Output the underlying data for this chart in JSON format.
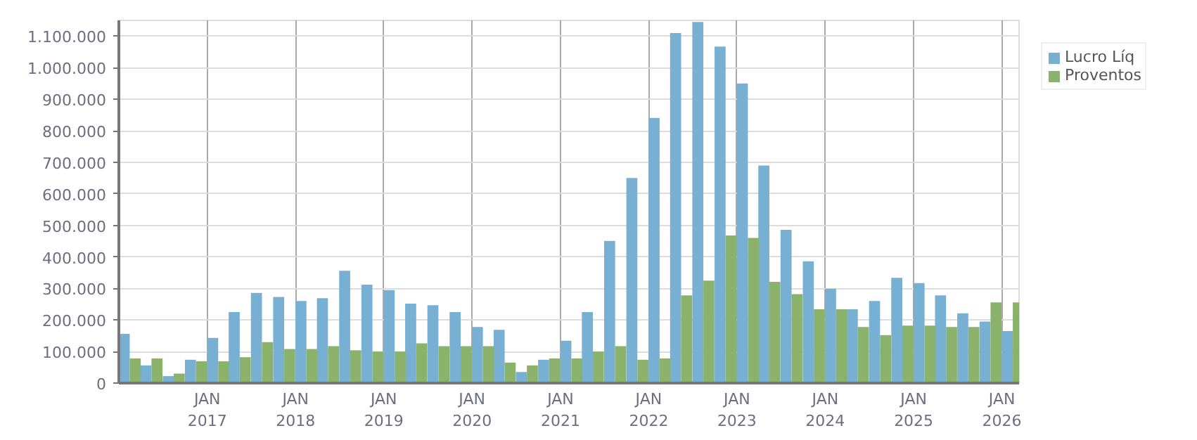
{
  "chart_data": {
    "type": "bar",
    "legend": "top right",
    "grid": true,
    "x": [
      "2016-02-15",
      "2016-05-15",
      "2016-08-15",
      "2016-11-15",
      "2017-02-15",
      "2017-05-15",
      "2017-08-15",
      "2017-11-15",
      "2018-02-15",
      "2018-05-15",
      "2018-08-15",
      "2018-11-15",
      "2019-02-15",
      "2019-05-15",
      "2019-08-15",
      "2019-11-15",
      "2020-02-15",
      "2020-05-15",
      "2020-08-15",
      "2020-11-15",
      "2021-02-15",
      "2021-05-15",
      "2021-08-15",
      "2021-11-15",
      "2022-02-15",
      "2022-05-15",
      "2022-08-15",
      "2022-11-15",
      "2023-02-15",
      "2023-05-15",
      "2023-08-15",
      "2023-11-15",
      "2024-02-15",
      "2024-05-15",
      "2024-08-15",
      "2024-11-15",
      "2025-02-15",
      "2025-05-15",
      "2025-08-15",
      "2025-11-15",
      "2026-02-15"
    ],
    "series": [
      {
        "name": "Lucro Líq",
        "color": "#77b0d2",
        "values": [
          156000,
          56000,
          22000,
          74000,
          143000,
          225000,
          286000,
          273000,
          260000,
          269000,
          356000,
          312000,
          295000,
          252000,
          247000,
          225000,
          178000,
          169000,
          35000,
          74000,
          134000,
          225000,
          451000,
          650000,
          841000,
          1110000,
          1145000,
          1067000,
          950000,
          690000,
          486000,
          386000,
          299000,
          234000,
          260000,
          334000,
          317000,
          278000,
          221000,
          195000,
          165000
        ]
      },
      {
        "name": "Proventos",
        "color": "#8ab26b",
        "values": [
          78000,
          78000,
          30000,
          69000,
          69000,
          82000,
          130000,
          108000,
          108000,
          117000,
          104000,
          100000,
          100000,
          126000,
          117000,
          117000,
          117000,
          65000,
          56000,
          78000,
          78000,
          100000,
          117000,
          74000,
          78000,
          278000,
          325000,
          468000,
          460000,
          321000,
          282000,
          234000,
          234000,
          178000,
          152000,
          182000,
          182000,
          178000,
          178000,
          256000,
          256000
        ]
      }
    ],
    "xlim": [
      "2016-01-01",
      "2026-03-13"
    ],
    "xticks": [
      {
        "value": "2017-01-01",
        "label": "JAN\n2017"
      },
      {
        "value": "2018-01-01",
        "label": "JAN\n2018"
      },
      {
        "value": "2019-01-01",
        "label": "JAN\n2019"
      },
      {
        "value": "2020-01-01",
        "label": "JAN\n2020"
      },
      {
        "value": "2021-01-01",
        "label": "JAN\n2021"
      },
      {
        "value": "2022-01-01",
        "label": "JAN\n2022"
      },
      {
        "value": "2023-01-01",
        "label": "JAN\n2023"
      },
      {
        "value": "2024-01-01",
        "label": "JAN\n2024"
      },
      {
        "value": "2025-01-01",
        "label": "JAN\n2025"
      },
      {
        "value": "2026-01-01",
        "label": "JAN\n2026"
      }
    ],
    "ylim": [
      0,
      1150000
    ],
    "yticks": [
      0,
      {
        "value": 100000,
        "label": "100.000"
      },
      {
        "value": 200000,
        "label": "200.000"
      },
      {
        "value": 300000,
        "label": "300.000"
      },
      {
        "value": 400000,
        "label": "400.000"
      },
      {
        "value": 500000,
        "label": "500.000"
      },
      {
        "value": 600000,
        "label": "600.000"
      },
      {
        "value": 700000,
        "label": "700.000"
      },
      {
        "value": 800000,
        "label": "800.000"
      },
      {
        "value": 900000,
        "label": "900.000"
      },
      {
        "value": 1000000,
        "label": "1.000.000"
      },
      {
        "value": 1100000,
        "label": "1.100.000"
      }
    ]
  }
}
